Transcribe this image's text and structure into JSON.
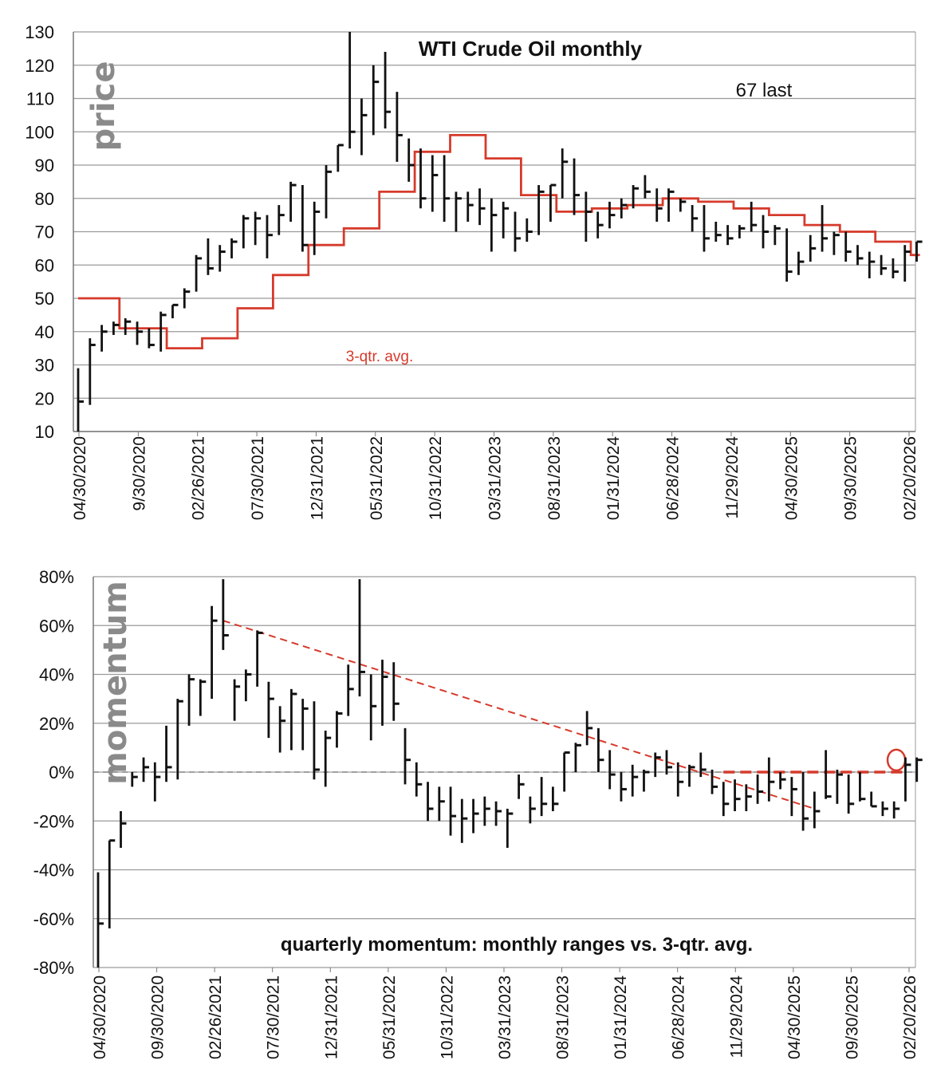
{
  "colors": {
    "bars": "#111111",
    "avg_line": "#d63a2b",
    "grid": "#9a9a9a",
    "axis_label": "#8a8a8a"
  },
  "chart_data": [
    {
      "type": "ohlc",
      "title": "WTI Crude Oil monthly",
      "ylabel": "price",
      "annotation": "67 last",
      "avg_label": "3-qtr. avg.",
      "ylim": [
        10,
        130
      ],
      "yticks": [
        10,
        20,
        30,
        40,
        50,
        60,
        70,
        80,
        90,
        100,
        110,
        120,
        130
      ],
      "tick_labels": [
        "04/30/2020",
        "9/30/2020",
        "02/26/2021",
        "07/30/2021",
        "12/31/2021",
        "05/31/2022",
        "10/31/2022",
        "03/31/2023",
        "08/31/2023",
        "01/31/2024",
        "06/28/2024",
        "11/29/2024",
        "04/30/2025",
        "09/30/2025",
        "02/20/2026"
      ],
      "bars": [
        {
          "h": 29,
          "l": 10,
          "c": 19
        },
        {
          "h": 38,
          "l": 18,
          "c": 36
        },
        {
          "h": 42,
          "l": 34,
          "c": 40
        },
        {
          "h": 43,
          "l": 39,
          "c": 42
        },
        {
          "h": 44,
          "l": 39,
          "c": 43
        },
        {
          "h": 43,
          "l": 36,
          "c": 40
        },
        {
          "h": 41,
          "l": 35,
          "c": 36
        },
        {
          "h": 46,
          "l": 34,
          "c": 45
        },
        {
          "h": 48,
          "l": 44,
          "c": 48
        },
        {
          "h": 53,
          "l": 47,
          "c": 52
        },
        {
          "h": 63,
          "l": 52,
          "c": 62
        },
        {
          "h": 68,
          "l": 57,
          "c": 59
        },
        {
          "h": 66,
          "l": 58,
          "c": 64
        },
        {
          "h": 68,
          "l": 62,
          "c": 67
        },
        {
          "h": 75,
          "l": 65,
          "c": 74
        },
        {
          "h": 76,
          "l": 66,
          "c": 74
        },
        {
          "h": 75,
          "l": 62,
          "c": 69
        },
        {
          "h": 78,
          "l": 69,
          "c": 75
        },
        {
          "h": 85,
          "l": 73,
          "c": 84
        },
        {
          "h": 84,
          "l": 64,
          "c": 66
        },
        {
          "h": 79,
          "l": 63,
          "c": 76
        },
        {
          "h": 90,
          "l": 74,
          "c": 88
        },
        {
          "h": 96,
          "l": 88,
          "c": 96
        },
        {
          "h": 130,
          "l": 95,
          "c": 100
        },
        {
          "h": 110,
          "l": 93,
          "c": 105
        },
        {
          "h": 120,
          "l": 99,
          "c": 115
        },
        {
          "h": 124,
          "l": 101,
          "c": 106
        },
        {
          "h": 112,
          "l": 91,
          "c": 99
        },
        {
          "h": 98,
          "l": 85,
          "c": 90
        },
        {
          "h": 95,
          "l": 77,
          "c": 80
        },
        {
          "h": 93,
          "l": 76,
          "c": 87
        },
        {
          "h": 93,
          "l": 73,
          "c": 80
        },
        {
          "h": 82,
          "l": 70,
          "c": 80
        },
        {
          "h": 82,
          "l": 73,
          "c": 78
        },
        {
          "h": 83,
          "l": 72,
          "c": 77
        },
        {
          "h": 80,
          "l": 64,
          "c": 75
        },
        {
          "h": 79,
          "l": 68,
          "c": 77
        },
        {
          "h": 76,
          "l": 64,
          "c": 68
        },
        {
          "h": 74,
          "l": 67,
          "c": 70
        },
        {
          "h": 84,
          "l": 69,
          "c": 82
        },
        {
          "h": 84,
          "l": 73,
          "c": 84
        },
        {
          "h": 95,
          "l": 80,
          "c": 91
        },
        {
          "h": 92,
          "l": 75,
          "c": 81
        },
        {
          "h": 82,
          "l": 67,
          "c": 76
        },
        {
          "h": 76,
          "l": 68,
          "c": 72
        },
        {
          "h": 79,
          "l": 71,
          "c": 75
        },
        {
          "h": 80,
          "l": 74,
          "c": 78
        },
        {
          "h": 84,
          "l": 77,
          "c": 83
        },
        {
          "h": 87,
          "l": 80,
          "c": 82
        },
        {
          "h": 83,
          "l": 73,
          "c": 77
        },
        {
          "h": 83,
          "l": 73,
          "c": 82
        },
        {
          "h": 80,
          "l": 76,
          "c": 79
        },
        {
          "h": 78,
          "l": 70,
          "c": 74
        },
        {
          "h": 78,
          "l": 64,
          "c": 68
        },
        {
          "h": 73,
          "l": 67,
          "c": 69
        },
        {
          "h": 72,
          "l": 66,
          "c": 68
        },
        {
          "h": 72,
          "l": 68,
          "c": 71
        },
        {
          "h": 79,
          "l": 70,
          "c": 72
        },
        {
          "h": 75,
          "l": 65,
          "c": 70
        },
        {
          "h": 72,
          "l": 66,
          "c": 71
        },
        {
          "h": 71,
          "l": 55,
          "c": 58
        },
        {
          "h": 64,
          "l": 57,
          "c": 61
        },
        {
          "h": 69,
          "l": 61,
          "c": 65
        },
        {
          "h": 78,
          "l": 64,
          "c": 68
        },
        {
          "h": 70,
          "l": 63,
          "c": 69
        },
        {
          "h": 70,
          "l": 61,
          "c": 64
        },
        {
          "h": 66,
          "l": 60,
          "c": 62
        },
        {
          "h": 64,
          "l": 56,
          "c": 61
        },
        {
          "h": 63,
          "l": 57,
          "c": 59
        },
        {
          "h": 62,
          "l": 56,
          "c": 58
        },
        {
          "h": 66,
          "l": 55,
          "c": 64
        },
        {
          "h": 67,
          "l": 61,
          "c": 67
        }
      ],
      "avg_steps": [
        {
          "from": 0,
          "to": 4,
          "v": 50
        },
        {
          "from": 4,
          "to": 8,
          "v": 41
        },
        {
          "from": 8,
          "to": 11,
          "v": 35
        },
        {
          "from": 11,
          "to": 14,
          "v": 38
        },
        {
          "from": 14,
          "to": 17,
          "v": 47
        },
        {
          "from": 17,
          "to": 20,
          "v": 57
        },
        {
          "from": 20,
          "to": 23,
          "v": 66
        },
        {
          "from": 23,
          "to": 26,
          "v": 71
        },
        {
          "from": 26,
          "to": 29,
          "v": 82
        },
        {
          "from": 29,
          "to": 32,
          "v": 94
        },
        {
          "from": 32,
          "to": 35,
          "v": 99
        },
        {
          "from": 35,
          "to": 38,
          "v": 92
        },
        {
          "from": 38,
          "to": 41,
          "v": 81
        },
        {
          "from": 41,
          "to": 44,
          "v": 76
        },
        {
          "from": 44,
          "to": 47,
          "v": 77
        },
        {
          "from": 47,
          "to": 50,
          "v": 78
        },
        {
          "from": 50,
          "to": 53,
          "v": 80
        },
        {
          "from": 53,
          "to": 56,
          "v": 79
        },
        {
          "from": 56,
          "to": 59,
          "v": 77
        },
        {
          "from": 59,
          "to": 62,
          "v": 75
        },
        {
          "from": 62,
          "to": 65,
          "v": 72
        },
        {
          "from": 65,
          "to": 68,
          "v": 70
        },
        {
          "from": 68,
          "to": 71,
          "v": 67
        },
        {
          "from": 71,
          "to": 72,
          "v": 63
        }
      ]
    },
    {
      "type": "ohlc",
      "title": "quarterly momentum: monthly ranges vs. 3-qtr. avg.",
      "ylabel": "momentum",
      "ylim": [
        -80,
        80
      ],
      "yticks": [
        -80,
        -60,
        -40,
        -20,
        0,
        20,
        40,
        60,
        80
      ],
      "ytick_labels": [
        "-80%",
        "-60%",
        "-40%",
        "-20%",
        "0%",
        "20%",
        "40%",
        "60%",
        "80%"
      ],
      "tick_labels": [
        "04/30/2020",
        "09/30/2020",
        "02/26/2021",
        "07/30/2021",
        "12/31/2021",
        "05/31/2022",
        "10/31/2022",
        "03/31/2023",
        "08/31/2023",
        "01/31/2024",
        "06/28/2024",
        "11/29/2024",
        "04/30/2025",
        "09/30/2025",
        "02/20/2026"
      ],
      "bars": [
        {
          "h": -41,
          "l": -80,
          "c": -62
        },
        {
          "h": -28,
          "l": -64,
          "c": -28
        },
        {
          "h": -16,
          "l": -31,
          "c": -21
        },
        {
          "h": 0,
          "l": -6,
          "c": -2
        },
        {
          "h": 6,
          "l": -4,
          "c": 2
        },
        {
          "h": 4,
          "l": -12,
          "c": -2
        },
        {
          "h": 19,
          "l": -4,
          "c": 2
        },
        {
          "h": 30,
          "l": -3,
          "c": 29
        },
        {
          "h": 40,
          "l": 19,
          "c": 38
        },
        {
          "h": 38,
          "l": 23,
          "c": 37
        },
        {
          "h": 68,
          "l": 30,
          "c": 62
        },
        {
          "h": 79,
          "l": 50,
          "c": 56
        },
        {
          "h": 38,
          "l": 21,
          "c": 35
        },
        {
          "h": 42,
          "l": 29,
          "c": 40
        },
        {
          "h": 58,
          "l": 35,
          "c": 57
        },
        {
          "h": 37,
          "l": 14,
          "c": 30
        },
        {
          "h": 27,
          "l": 8,
          "c": 21
        },
        {
          "h": 34,
          "l": 9,
          "c": 32
        },
        {
          "h": 30,
          "l": 9,
          "c": 26
        },
        {
          "h": 29,
          "l": -3,
          "c": 1
        },
        {
          "h": 17,
          "l": -6,
          "c": 14
        },
        {
          "h": 25,
          "l": 10,
          "c": 24
        },
        {
          "h": 44,
          "l": 23,
          "c": 34
        },
        {
          "h": 79,
          "l": 31,
          "c": 41
        },
        {
          "h": 40,
          "l": 13,
          "c": 27
        },
        {
          "h": 46,
          "l": 19,
          "c": 39
        },
        {
          "h": 45,
          "l": 21,
          "c": 28
        },
        {
          "h": 18,
          "l": -5,
          "c": 5
        },
        {
          "h": 4,
          "l": -10,
          "c": -5
        },
        {
          "h": -4,
          "l": -20,
          "c": -15
        },
        {
          "h": -6,
          "l": -20,
          "c": -12
        },
        {
          "h": -6,
          "l": -26,
          "c": -18
        },
        {
          "h": -11,
          "l": -29,
          "c": -19
        },
        {
          "h": -11,
          "l": -25,
          "c": -17
        },
        {
          "h": -10,
          "l": -22,
          "c": -15
        },
        {
          "h": -12,
          "l": -22,
          "c": -16
        },
        {
          "h": -15,
          "l": -31,
          "c": -17
        },
        {
          "h": -1,
          "l": -11,
          "c": -5
        },
        {
          "h": -10,
          "l": -21,
          "c": -15
        },
        {
          "h": -2,
          "l": -18,
          "c": -13
        },
        {
          "h": -6,
          "l": -16,
          "c": -13
        },
        {
          "h": 8,
          "l": -8,
          "c": 8
        },
        {
          "h": 12,
          "l": 0,
          "c": 11
        },
        {
          "h": 25,
          "l": 11,
          "c": 18
        },
        {
          "h": 18,
          "l": 0,
          "c": 5
        },
        {
          "h": 9,
          "l": -7,
          "c": -1
        },
        {
          "h": 0,
          "l": -12,
          "c": -7
        },
        {
          "h": 3,
          "l": -10,
          "c": -2
        },
        {
          "h": 1,
          "l": -8,
          "c": 0
        },
        {
          "h": 8,
          "l": -2,
          "c": 6
        },
        {
          "h": 9,
          "l": -1,
          "c": 2
        },
        {
          "h": 4,
          "l": -10,
          "c": -4
        },
        {
          "h": 3,
          "l": -6,
          "c": 2
        },
        {
          "h": 8,
          "l": -2,
          "c": 1
        },
        {
          "h": 1,
          "l": -9,
          "c": -6
        },
        {
          "h": -4,
          "l": -18,
          "c": -13
        },
        {
          "h": -3,
          "l": -16,
          "c": -11
        },
        {
          "h": -5,
          "l": -16,
          "c": -10
        },
        {
          "h": -1,
          "l": -13,
          "c": -8
        },
        {
          "h": 6,
          "l": -12,
          "c": -4
        },
        {
          "h": 0,
          "l": -7,
          "c": -3
        },
        {
          "h": -2,
          "l": -18,
          "c": -7
        },
        {
          "h": 0,
          "l": -24,
          "c": -19
        },
        {
          "h": -8,
          "l": -23,
          "c": -16
        },
        {
          "h": 9,
          "l": -11,
          "c": -10
        },
        {
          "h": 1,
          "l": -13,
          "c": -1
        },
        {
          "h": -1,
          "l": -17,
          "c": -13
        },
        {
          "h": 0,
          "l": -12,
          "c": -11
        },
        {
          "h": -8,
          "l": -14,
          "c": -14
        },
        {
          "h": -12,
          "l": -18,
          "c": -15
        },
        {
          "h": -12,
          "l": -19,
          "c": -15
        },
        {
          "h": 6,
          "l": -12,
          "c": 3
        },
        {
          "h": 6,
          "l": -4,
          "c": 5
        }
      ],
      "trendlines": [
        {
          "x0": 11,
          "y0": 62,
          "x1": 63,
          "y1": -15,
          "style": "dashed"
        },
        {
          "x0": 55,
          "y0": 0,
          "x1": 71,
          "y1": 0,
          "style": "dashed-bold"
        }
      ],
      "highlight": {
        "x": 70.2,
        "y": 3
      }
    }
  ]
}
